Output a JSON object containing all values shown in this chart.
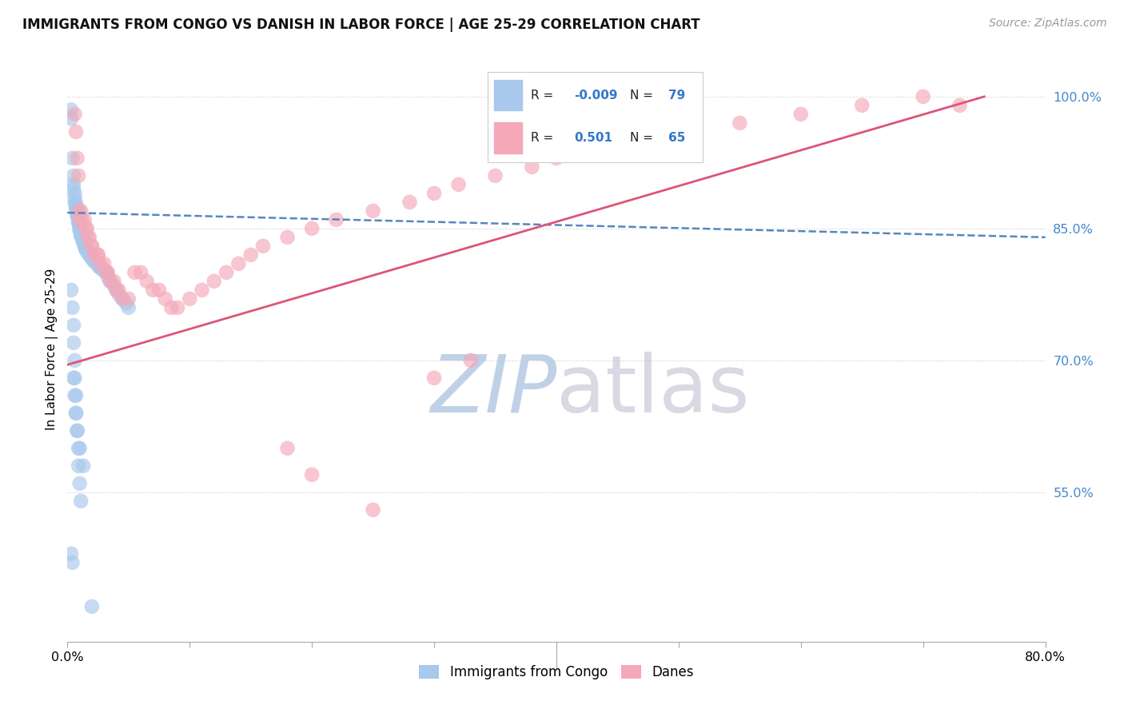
{
  "title": "IMMIGRANTS FROM CONGO VS DANISH IN LABOR FORCE | AGE 25-29 CORRELATION CHART",
  "source": "Source: ZipAtlas.com",
  "ylabel": "In Labor Force | Age 25-29",
  "legend_label1": "Immigrants from Congo",
  "legend_label2": "Danes",
  "R_blue": "-0.009",
  "N_blue": 79,
  "R_pink": "0.501",
  "N_pink": 65,
  "color_blue": "#A8C8EC",
  "color_pink": "#F4A8B8",
  "trendline_blue": "#5588BB",
  "trendline_pink": "#DD5577",
  "xlim": [
    0.0,
    0.8
  ],
  "ylim": [
    0.38,
    1.045
  ],
  "ytick_vals": [
    0.55,
    0.7,
    0.85,
    1.0
  ],
  "ytick_labels": [
    "55.0%",
    "70.0%",
    "85.0%",
    "100.0%"
  ],
  "blue_trendline_y0": 0.868,
  "blue_trendline_y1": 0.84,
  "pink_trendline_x0": 0.0,
  "pink_trendline_y0": 0.695,
  "pink_trendline_x1": 0.75,
  "pink_trendline_y1": 1.0,
  "blue_x": [
    0.003,
    0.003,
    0.004,
    0.005,
    0.005,
    0.005,
    0.006,
    0.006,
    0.006,
    0.007,
    0.007,
    0.007,
    0.007,
    0.008,
    0.008,
    0.008,
    0.008,
    0.009,
    0.009,
    0.009,
    0.009,
    0.01,
    0.01,
    0.01,
    0.01,
    0.011,
    0.011,
    0.011,
    0.012,
    0.012,
    0.013,
    0.013,
    0.014,
    0.014,
    0.015,
    0.015,
    0.016,
    0.017,
    0.018,
    0.019,
    0.02,
    0.021,
    0.022,
    0.025,
    0.025,
    0.026,
    0.028,
    0.03,
    0.032,
    0.033,
    0.035,
    0.038,
    0.04,
    0.042,
    0.045,
    0.048,
    0.05,
    0.003,
    0.004,
    0.005,
    0.005,
    0.006,
    0.006,
    0.007,
    0.007,
    0.008,
    0.009,
    0.009,
    0.01,
    0.011,
    0.003,
    0.004,
    0.005,
    0.006,
    0.007,
    0.008,
    0.01,
    0.013,
    0.02
  ],
  "blue_y": [
    0.985,
    0.975,
    0.93,
    0.91,
    0.9,
    0.895,
    0.89,
    0.885,
    0.88,
    0.878,
    0.876,
    0.874,
    0.872,
    0.87,
    0.868,
    0.866,
    0.864,
    0.862,
    0.86,
    0.858,
    0.856,
    0.854,
    0.852,
    0.85,
    0.848,
    0.846,
    0.844,
    0.842,
    0.84,
    0.838,
    0.836,
    0.834,
    0.832,
    0.83,
    0.828,
    0.826,
    0.824,
    0.822,
    0.82,
    0.818,
    0.816,
    0.814,
    0.812,
    0.81,
    0.808,
    0.806,
    0.804,
    0.802,
    0.8,
    0.795,
    0.79,
    0.785,
    0.78,
    0.775,
    0.77,
    0.765,
    0.76,
    0.78,
    0.76,
    0.74,
    0.72,
    0.7,
    0.68,
    0.66,
    0.64,
    0.62,
    0.6,
    0.58,
    0.56,
    0.54,
    0.48,
    0.47,
    0.68,
    0.66,
    0.64,
    0.62,
    0.6,
    0.58,
    0.42
  ],
  "pink_x": [
    0.006,
    0.007,
    0.008,
    0.009,
    0.01,
    0.01,
    0.011,
    0.012,
    0.014,
    0.015,
    0.016,
    0.017,
    0.018,
    0.02,
    0.02,
    0.022,
    0.025,
    0.025,
    0.027,
    0.03,
    0.032,
    0.033,
    0.035,
    0.038,
    0.04,
    0.042,
    0.045,
    0.05,
    0.055,
    0.06,
    0.065,
    0.07,
    0.075,
    0.08,
    0.085,
    0.09,
    0.1,
    0.11,
    0.12,
    0.13,
    0.14,
    0.15,
    0.16,
    0.18,
    0.2,
    0.22,
    0.25,
    0.28,
    0.3,
    0.32,
    0.35,
    0.38,
    0.4,
    0.45,
    0.5,
    0.55,
    0.6,
    0.65,
    0.7,
    0.73,
    0.18,
    0.2,
    0.25,
    0.3,
    0.33
  ],
  "pink_y": [
    0.98,
    0.96,
    0.93,
    0.91,
    0.87,
    0.86,
    0.87,
    0.86,
    0.86,
    0.85,
    0.85,
    0.84,
    0.84,
    0.83,
    0.83,
    0.82,
    0.82,
    0.82,
    0.81,
    0.81,
    0.8,
    0.8,
    0.79,
    0.79,
    0.78,
    0.78,
    0.77,
    0.77,
    0.8,
    0.8,
    0.79,
    0.78,
    0.78,
    0.77,
    0.76,
    0.76,
    0.77,
    0.78,
    0.79,
    0.8,
    0.81,
    0.82,
    0.83,
    0.84,
    0.85,
    0.86,
    0.87,
    0.88,
    0.89,
    0.9,
    0.91,
    0.92,
    0.93,
    0.94,
    0.96,
    0.97,
    0.98,
    0.99,
    1.0,
    0.99,
    0.6,
    0.57,
    0.53,
    0.68,
    0.7
  ]
}
